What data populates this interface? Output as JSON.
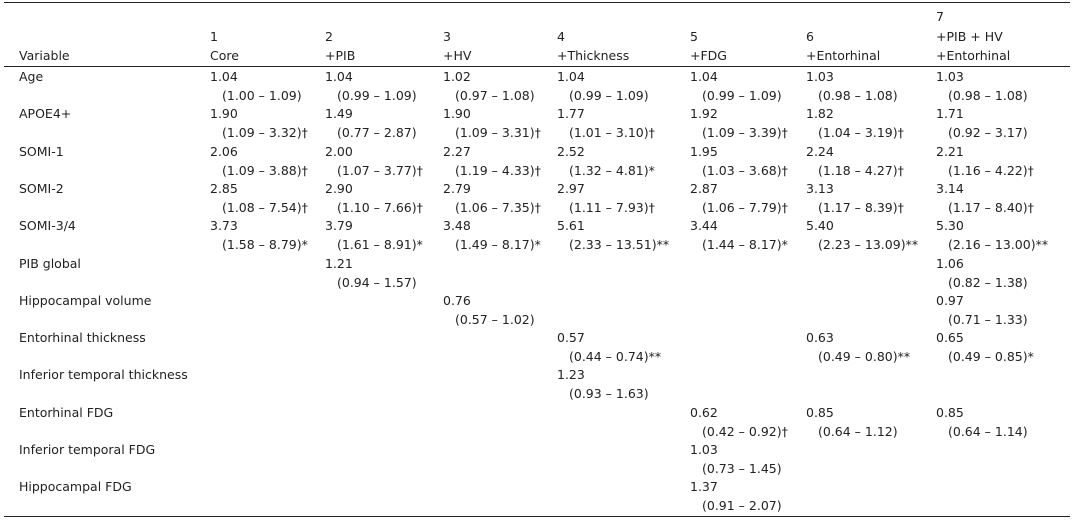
{
  "table": {
    "header": [
      [
        "Variable"
      ],
      [
        "1",
        "Core"
      ],
      [
        "2",
        "+PIB"
      ],
      [
        "3",
        "+HV"
      ],
      [
        "4",
        "+Thickness"
      ],
      [
        "5",
        "+FDG"
      ],
      [
        "6",
        "+Entorhinal"
      ],
      [
        "7",
        "+PIB + HV",
        "+Entorhinal"
      ]
    ],
    "rows": [
      {
        "label": "Age",
        "cells": [
          [
            "1.04",
            "(1.00 – 1.09)"
          ],
          [
            "1.04",
            "(0.99 – 1.09)"
          ],
          [
            "1.02",
            "(0.97 – 1.08)"
          ],
          [
            "1.04",
            "(0.99 – 1.09)"
          ],
          [
            "1.04",
            "(0.99 – 1.09)"
          ],
          [
            "1.03",
            "(0.98 – 1.08)"
          ],
          [
            "1.03",
            "(0.98 – 1.08)"
          ]
        ]
      },
      {
        "label": "APOE4+",
        "cells": [
          [
            "1.90",
            "(1.09 – 3.32)†"
          ],
          [
            "1.49",
            "(0.77 – 2.87)"
          ],
          [
            "1.90",
            "(1.09 – 3.31)†"
          ],
          [
            "1.77",
            "(1.01 – 3.10)†"
          ],
          [
            "1.92",
            "(1.09 – 3.39)†"
          ],
          [
            "1.82",
            "(1.04 – 3.19)†"
          ],
          [
            "1.71",
            "(0.92 – 3.17)"
          ]
        ]
      },
      {
        "label": "SOMI-1",
        "cells": [
          [
            "2.06",
            "(1.09 – 3.88)†"
          ],
          [
            "2.00",
            "(1.07 – 3.77)†"
          ],
          [
            "2.27",
            "(1.19 – 4.33)†"
          ],
          [
            "2.52",
            "(1.32 – 4.81)*"
          ],
          [
            "1.95",
            "(1.03 – 3.68)†"
          ],
          [
            "2.24",
            "(1.18 – 4.27)†"
          ],
          [
            "2.21",
            "(1.16 – 4.22)†"
          ]
        ]
      },
      {
        "label": "SOMI-2",
        "cells": [
          [
            "2.85",
            "(1.08 – 7.54)†"
          ],
          [
            "2.90",
            "(1.10 – 7.66)†"
          ],
          [
            "2.79",
            "(1.06 – 7.35)†"
          ],
          [
            "2.97",
            "(1.11 – 7.93)†"
          ],
          [
            "2.87",
            "(1.06 – 7.79)†"
          ],
          [
            "3.13",
            "(1.17 – 8.39)†"
          ],
          [
            "3.14",
            "(1.17 – 8.40)†"
          ]
        ]
      },
      {
        "label": "SOMI-3/4",
        "cells": [
          [
            "3.73",
            "(1.58 – 8.79)*"
          ],
          [
            "3.79",
            "(1.61 – 8.91)*"
          ],
          [
            "3.48",
            "(1.49 – 8.17)*"
          ],
          [
            "5.61",
            "(2.33 – 13.51)**"
          ],
          [
            "3.44",
            "(1.44 – 8.17)*"
          ],
          [
            "5.40",
            "(2.23 – 13.09)**"
          ],
          [
            "5.30",
            "(2.16 – 13.00)**"
          ]
        ]
      },
      {
        "label": "PIB global",
        "cells": [
          null,
          [
            "1.21",
            "(0.94 – 1.57)"
          ],
          null,
          null,
          null,
          null,
          [
            "1.06",
            "(0.82 – 1.38)"
          ]
        ]
      },
      {
        "label": "Hippocampal volume",
        "cells": [
          null,
          null,
          [
            "0.76",
            "(0.57 – 1.02)"
          ],
          null,
          null,
          null,
          [
            "0.97",
            "(0.71 – 1.33)"
          ]
        ]
      },
      {
        "label": "Entorhinal thickness",
        "cells": [
          null,
          null,
          null,
          [
            "0.57",
            "(0.44 – 0.74)**"
          ],
          null,
          [
            "0.63",
            "(0.49 – 0.80)**"
          ],
          [
            "0.65",
            "(0.49 – 0.85)*"
          ]
        ]
      },
      {
        "label": "Inferior temporal thickness",
        "cells": [
          null,
          null,
          null,
          [
            "1.23",
            "(0.93 – 1.63)"
          ],
          null,
          null,
          null
        ]
      },
      {
        "label": "Entorhinal FDG",
        "cells": [
          null,
          null,
          null,
          null,
          [
            "0.62",
            "(0.42 – 0.92)†"
          ],
          [
            "0.85",
            "(0.64 – 1.12)"
          ],
          [
            "0.85",
            "(0.64 – 1.14)"
          ]
        ]
      },
      {
        "label": "Inferior temporal FDG",
        "cells": [
          null,
          null,
          null,
          null,
          [
            "1.03",
            "(0.73 – 1.45)"
          ],
          null,
          null
        ]
      },
      {
        "label": "Hippocampal FDG",
        "cells": [
          null,
          null,
          null,
          null,
          [
            "1.37",
            "(0.91 – 2.07)"
          ],
          null,
          null
        ]
      }
    ]
  }
}
